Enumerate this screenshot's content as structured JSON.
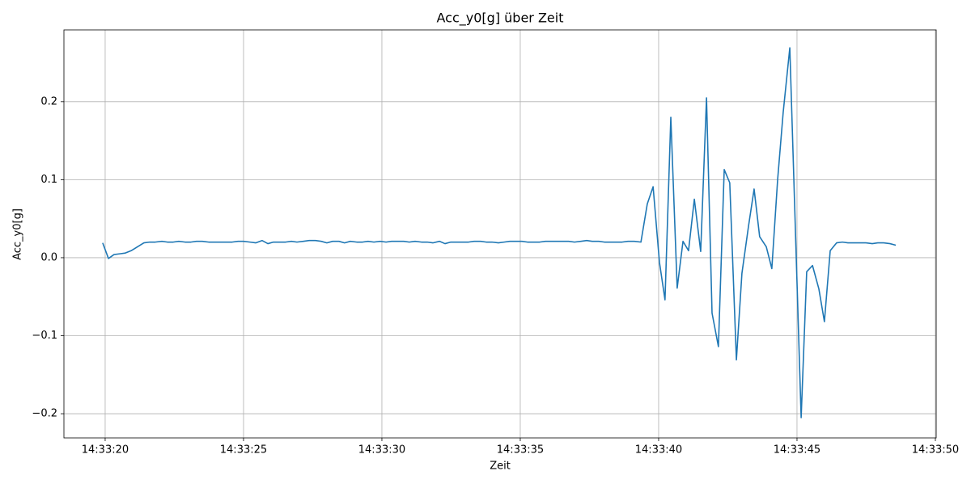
{
  "chart_data": {
    "type": "line",
    "title": "Acc_y0[g] über Zeit",
    "xlabel": "Zeit",
    "ylabel": "Acc_y0[g]",
    "grid": true,
    "xlim": [
      "14:33:18.51",
      "14:33:50.03"
    ],
    "xticks": [
      "14:33:20",
      "14:33:25",
      "14:33:30",
      "14:33:35",
      "14:33:40",
      "14:33:45",
      "14:33:50"
    ],
    "ylim": [
      -0.231,
      0.292
    ],
    "yticks": [
      {
        "value": -0.2,
        "label": "−0.2"
      },
      {
        "value": -0.1,
        "label": "−0.1"
      },
      {
        "value": 0,
        "label": "0.0"
      },
      0.1,
      0.2
    ],
    "x": [
      "14:33:19.91",
      "14:33:20.12",
      "14:33:20.32",
      "14:33:20.53",
      "14:33:20.73",
      "14:33:20.94",
      "14:33:21.17",
      "14:33:21.40",
      "14:33:21.61",
      "14:33:21.81",
      "14:33:22.05",
      "14:33:22.25",
      "14:33:22.46",
      "14:33:22.66",
      "14:33:22.89",
      "14:33:23.10",
      "14:33:23.30",
      "14:33:23.51",
      "14:33:23.74",
      "14:33:23.95",
      "14:33:24.15",
      "14:33:24.39",
      "14:33:24.59",
      "14:33:24.80",
      "14:33:25.00",
      "14:33:25.23",
      "14:33:25.44",
      "14:33:25.67",
      "14:33:25.88",
      "14:33:26.08",
      "14:33:26.32",
      "14:33:26.52",
      "14:33:26.73",
      "14:33:26.93",
      "14:33:27.16",
      "14:33:27.37",
      "14:33:27.60",
      "14:33:27.81",
      "14:33:28.01",
      "14:33:28.22",
      "14:33:28.45",
      "14:33:28.65",
      "14:33:28.86",
      "14:33:29.09",
      "14:33:29.30",
      "14:33:29.50",
      "14:33:29.71",
      "14:33:29.94",
      "14:33:30.15",
      "14:33:30.35",
      "14:33:30.58",
      "14:33:30.79",
      "14:33:30.99",
      "14:33:31.20",
      "14:33:31.43",
      "14:33:31.64",
      "14:33:31.84",
      "14:33:32.08",
      "14:33:32.28",
      "14:33:32.49",
      "14:33:32.72",
      "14:33:32.92",
      "14:33:33.13",
      "14:33:33.33",
      "14:33:33.57",
      "14:33:33.77",
      "14:33:33.98",
      "14:33:34.21",
      "14:33:34.42",
      "14:33:34.62",
      "14:33:34.82",
      "14:33:35.06",
      "14:33:35.26",
      "14:33:35.47",
      "14:33:35.70",
      "14:33:35.91",
      "14:33:36.11",
      "14:33:36.35",
      "14:33:36.55",
      "14:33:36.75",
      "14:33:36.96",
      "14:33:37.19",
      "14:33:37.40",
      "14:33:37.60",
      "14:33:37.84",
      "14:33:38.04",
      "14:33:38.25",
      "14:33:38.48",
      "14:33:38.68",
      "14:33:38.89",
      "14:33:39.12",
      "14:33:39.36",
      "14:33:39.59",
      "14:33:39.80",
      "14:33:40.03",
      "14:33:40.23",
      "14:33:40.44",
      "14:33:40.67",
      "14:33:40.88",
      "14:33:41.08",
      "14:33:41.29",
      "14:33:41.52",
      "14:33:41.73",
      "14:33:41.93",
      "14:33:42.16",
      "14:33:42.37",
      "14:33:42.57",
      "14:33:42.81",
      "14:33:43.01",
      "14:33:43.25",
      "14:33:43.45",
      "14:33:43.65",
      "14:33:43.89",
      "14:33:44.09",
      "14:33:44.30",
      "14:33:44.50",
      "14:33:44.74",
      "14:33:45.15",
      "14:33:45.35",
      "14:33:45.56",
      "14:33:45.79",
      "14:33:45.99",
      "14:33:46.20",
      "14:33:46.43",
      "14:33:46.64",
      "14:33:46.84",
      "14:33:47.08",
      "14:33:47.28",
      "14:33:47.49",
      "14:33:47.72",
      "14:33:47.92",
      "14:33:48.13",
      "14:33:48.36",
      "14:33:48.57"
    ],
    "series": [
      {
        "name": "Acc_y0[g]",
        "color": "#1f77b4",
        "values": [
          0.019,
          -0.001,
          0.004,
          0.005,
          0.006,
          0.009,
          0.014,
          0.019,
          0.02,
          0.02,
          0.021,
          0.02,
          0.02,
          0.021,
          0.02,
          0.02,
          0.021,
          0.021,
          0.02,
          0.02,
          0.02,
          0.02,
          0.02,
          0.021,
          0.021,
          0.02,
          0.019,
          0.022,
          0.018,
          0.02,
          0.02,
          0.02,
          0.021,
          0.02,
          0.021,
          0.022,
          0.022,
          0.021,
          0.019,
          0.021,
          0.021,
          0.019,
          0.021,
          0.02,
          0.02,
          0.021,
          0.02,
          0.021,
          0.02,
          0.021,
          0.021,
          0.021,
          0.02,
          0.021,
          0.02,
          0.02,
          0.019,
          0.021,
          0.018,
          0.02,
          0.02,
          0.02,
          0.02,
          0.021,
          0.021,
          0.02,
          0.02,
          0.019,
          0.02,
          0.021,
          0.021,
          0.021,
          0.02,
          0.02,
          0.02,
          0.021,
          0.021,
          0.021,
          0.021,
          0.021,
          0.02,
          0.021,
          0.022,
          0.021,
          0.021,
          0.02,
          0.02,
          0.02,
          0.02,
          0.021,
          0.021,
          0.02,
          0.069,
          0.091,
          -0.006,
          -0.054,
          0.18,
          -0.039,
          0.021,
          0.009,
          0.075,
          0.008,
          0.205,
          -0.071,
          -0.114,
          0.113,
          0.096,
          -0.131,
          -0.02,
          0.041,
          0.088,
          0.027,
          0.014,
          -0.014,
          0.1,
          0.186,
          0.269,
          -0.205,
          -0.018,
          -0.01,
          -0.04,
          -0.082,
          0.009,
          0.019,
          0.02,
          0.019,
          0.019,
          0.019,
          0.019,
          0.018,
          0.019,
          0.019,
          0.018,
          0.016
        ]
      }
    ]
  }
}
